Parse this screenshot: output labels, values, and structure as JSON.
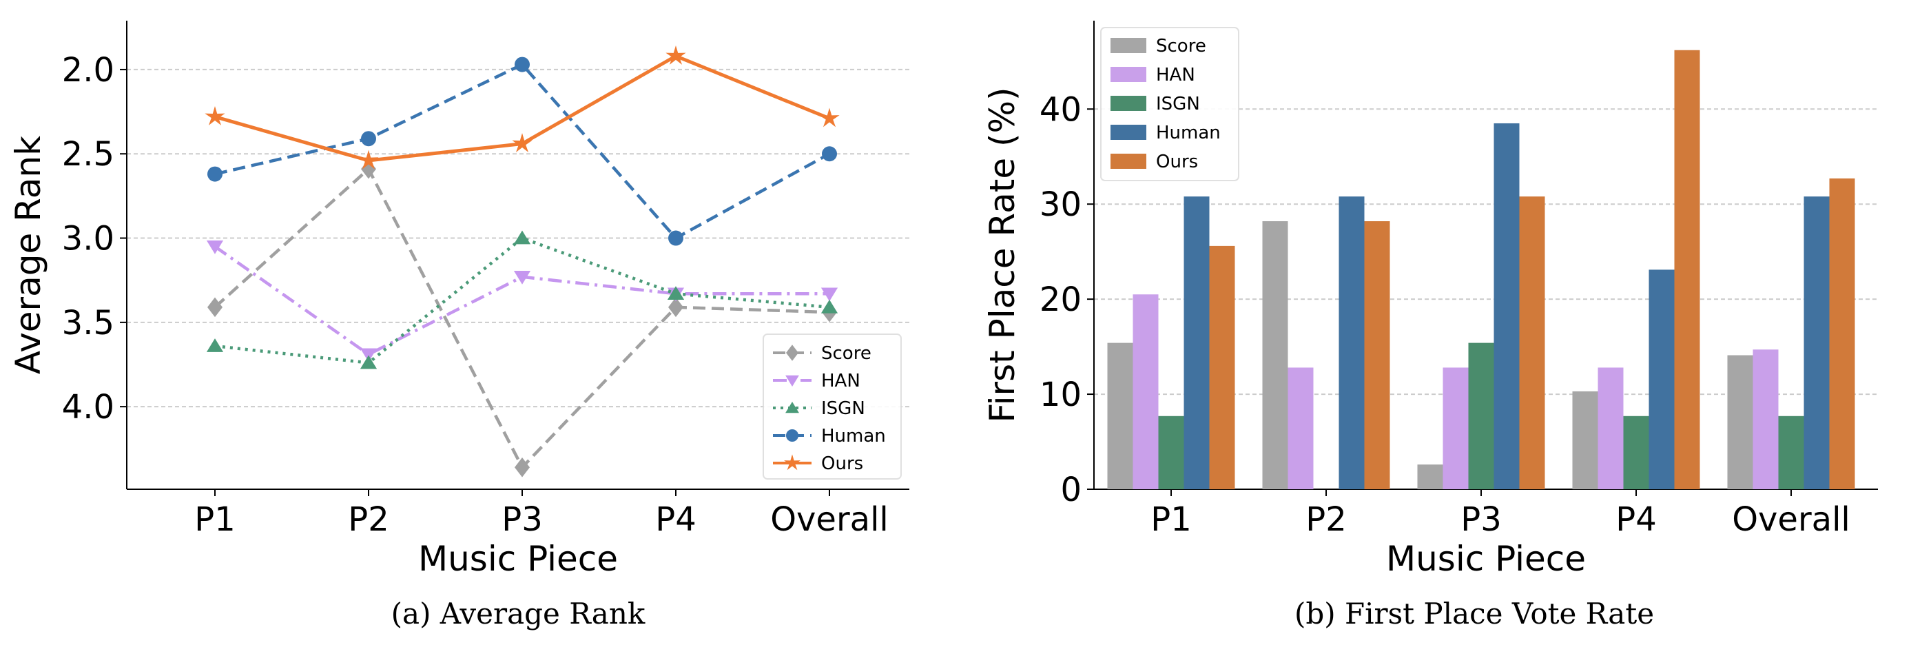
{
  "chart_data": [
    {
      "type": "line",
      "caption": "(a) Average Rank",
      "xlabel": "Music Piece",
      "ylabel": "Average Rank",
      "categories": [
        "P1",
        "P2",
        "P3",
        "P4",
        "Overall"
      ],
      "ylim": [
        4.49,
        1.71
      ],
      "y_inverted": true,
      "yticks": [
        "2.0",
        "2.5",
        "3.0",
        "3.5",
        "4.0"
      ],
      "grid": "y dashed",
      "legend_position": "lower-right",
      "series": [
        {
          "name": "Score",
          "color": "#a0a0a0",
          "marker": "diamond",
          "dash": "dashed",
          "values": [
            3.41,
            2.59,
            4.36,
            3.41,
            3.44
          ]
        },
        {
          "name": "HAN",
          "color": "#c596ef",
          "marker": "triangle-down",
          "dash": "dashdot",
          "values": [
            3.05,
            3.69,
            3.23,
            3.33,
            3.33
          ]
        },
        {
          "name": "ISGN",
          "color": "#4a9a78",
          "marker": "triangle-up",
          "dash": "dotted",
          "values": [
            3.64,
            3.74,
            3.0,
            3.33,
            3.41
          ]
        },
        {
          "name": "Human",
          "color": "#3a75b0",
          "marker": "circle",
          "dash": "dashed",
          "values": [
            2.62,
            2.41,
            1.97,
            3.0,
            2.5
          ]
        },
        {
          "name": "Ours",
          "color": "#f07a30",
          "marker": "star",
          "dash": "solid",
          "values": [
            2.28,
            2.54,
            2.44,
            1.92,
            2.29
          ]
        }
      ]
    },
    {
      "type": "bar",
      "caption": "(b) First Place Vote Rate",
      "xlabel": "Music Piece",
      "ylabel": "First Place Rate (%)",
      "categories": [
        "P1",
        "P2",
        "P3",
        "P4",
        "Overall"
      ],
      "ylim": [
        0,
        49.3
      ],
      "yticks": [
        "0",
        "10",
        "20",
        "30",
        "40"
      ],
      "grid": "y dashed",
      "legend_position": "top-left",
      "series": [
        {
          "name": "Score",
          "color": "#a6a6a6",
          "values": [
            15.4,
            28.2,
            2.6,
            10.3,
            14.1
          ]
        },
        {
          "name": "HAN",
          "color": "#c9a0ea",
          "values": [
            20.5,
            12.8,
            12.8,
            12.8,
            14.7
          ]
        },
        {
          "name": "ISGN",
          "color": "#4a8c6c",
          "values": [
            7.7,
            0,
            15.4,
            7.7,
            7.7
          ]
        },
        {
          "name": "Human",
          "color": "#41729f",
          "values": [
            30.8,
            30.8,
            38.5,
            23.1,
            30.8
          ]
        },
        {
          "name": "Ours",
          "color": "#d17a3a",
          "values": [
            25.6,
            28.2,
            30.8,
            46.2,
            32.7
          ]
        }
      ]
    }
  ]
}
